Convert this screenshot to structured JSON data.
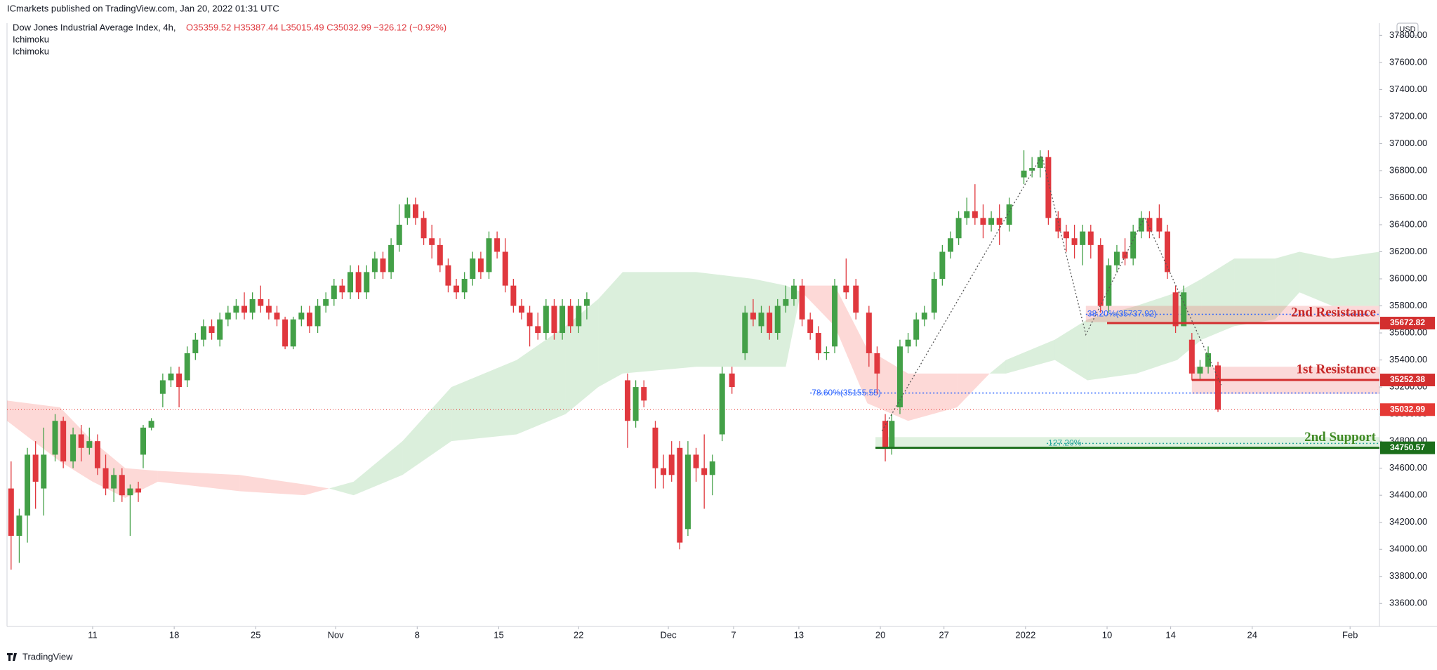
{
  "chart_data": {
    "type": "candlestick",
    "publisher": "ICmarkets published on TradingView.com, Jan 20, 2022 01:31 UTC",
    "title": "Dow Jones Industrial Average Index, 4h,",
    "ohlc": "O35359.52 H35387.44 L35015.49 C35032.99",
    "change": "−326.12 (−0.92%)",
    "indicators": [
      "Ichimoku",
      "Ichimoku"
    ],
    "currency": "USD",
    "brand": "TradingView",
    "up_color": "#43a047",
    "down_color": "#e0383e",
    "xlim": [
      -0.25,
      83.9
    ],
    "xticks": [
      {
        "value": 5,
        "label": "11"
      },
      {
        "value": 10,
        "label": "18"
      },
      {
        "value": 15,
        "label": "25"
      },
      {
        "value": 19.9,
        "label": "Nov"
      },
      {
        "value": 24.9,
        "label": "8"
      },
      {
        "value": 29.9,
        "label": "15"
      },
      {
        "value": 34.8,
        "label": "22"
      },
      {
        "value": 40.3,
        "label": "Dec"
      },
      {
        "value": 44.3,
        "label": "7"
      },
      {
        "value": 48.3,
        "label": "13"
      },
      {
        "value": 53.3,
        "label": "20"
      },
      {
        "value": 57.2,
        "label": "27"
      },
      {
        "value": 62.2,
        "label": "2022"
      },
      {
        "value": 67.2,
        "label": "10"
      },
      {
        "value": 71.1,
        "label": "14"
      },
      {
        "value": 76.1,
        "label": "24"
      },
      {
        "value": 82.1,
        "label": "Feb"
      }
    ],
    "ylim": [
      33430,
      37890
    ],
    "yticks": [
      {
        "value": 33600,
        "label": "33600.00"
      },
      {
        "value": 33800,
        "label": "33800.00"
      },
      {
        "value": 34000,
        "label": "34000.00"
      },
      {
        "value": 34200,
        "label": "34200.00"
      },
      {
        "value": 34400,
        "label": "34400.00"
      },
      {
        "value": 34600,
        "label": "34600.00"
      },
      {
        "value": 34800,
        "label": "34800.00"
      },
      {
        "value": 35000,
        "label": "35000.00"
      },
      {
        "value": 35200,
        "label": "35200.00"
      },
      {
        "value": 35400,
        "label": "35400.00"
      },
      {
        "value": 35600,
        "label": "35600.00"
      },
      {
        "value": 35800,
        "label": "35800.00"
      },
      {
        "value": 36000,
        "label": "36000.00"
      },
      {
        "value": 36200,
        "label": "36200.00"
      },
      {
        "value": 36400,
        "label": "36400.00"
      },
      {
        "value": 36600,
        "label": "36600.00"
      },
      {
        "value": 36800,
        "label": "36800.00"
      },
      {
        "value": 37000,
        "label": "37000.00"
      },
      {
        "value": 37200,
        "label": "37200.00"
      },
      {
        "value": 37400,
        "label": "37400.00"
      },
      {
        "value": 37600,
        "label": "37600.00"
      },
      {
        "value": 37800,
        "label": "37800.00"
      }
    ],
    "x": [
      0,
      0.5,
      1,
      1.5,
      2,
      2.7,
      3.2,
      3.8,
      4.3,
      4.8,
      5.3,
      5.8,
      6.3,
      6.8,
      7.3,
      7.8,
      8.1,
      8.6,
      9.3,
      9.8,
      10.3,
      10.8,
      11.3,
      11.8,
      12.3,
      12.8,
      13.3,
      13.8,
      14.3,
      14.8,
      15.3,
      15.8,
      16.3,
      16.8,
      17.3,
      17.8,
      18.3,
      18.8,
      19.3,
      19.8,
      20.3,
      20.8,
      21.3,
      21.8,
      22.3,
      22.8,
      23.3,
      23.8,
      24.3,
      24.8,
      25.3,
      25.8,
      26.3,
      26.8,
      27.3,
      27.8,
      28.3,
      28.8,
      29.3,
      29.8,
      30.3,
      30.8,
      31.3,
      31.8,
      32.3,
      32.8,
      33.3,
      33.8,
      34.3,
      34.8,
      35.3,
      37.8,
      38.3,
      38.8,
      39.5,
      40,
      40.5,
      41,
      41.5,
      42,
      42.5,
      43,
      43.6,
      44.2,
      45,
      45.5,
      46,
      46.5,
      47,
      47.5,
      48,
      48.5,
      49,
      49.5,
      50,
      50.5,
      51.2,
      51.8,
      52.6,
      53.1,
      53.6,
      54,
      54.5,
      55,
      55.5,
      56,
      56.6,
      57.1,
      57.6,
      58.1,
      58.6,
      59.1,
      59.6,
      60.1,
      60.6,
      61.2,
      62.1,
      62.6,
      63.1,
      63.6,
      64.2,
      64.7,
      65.2,
      65.7,
      66.2,
      66.8,
      67.3,
      67.8,
      68.3,
      68.8,
      69.3,
      69.8,
      70.4,
      70.9,
      71.4,
      71.9,
      72.4,
      72.9,
      73.4,
      74
    ],
    "open": [
      34450,
      34100,
      34250,
      34700,
      34450,
      34700,
      34950,
      34650,
      34850,
      34750,
      34800,
      34600,
      34450,
      34550,
      34400,
      34450,
      34700,
      34900,
      35150,
      35250,
      35300,
      35250,
      35450,
      35550,
      35650,
      35550,
      35700,
      35750,
      35800,
      35750,
      35850,
      35800,
      35750,
      35700,
      35500,
      35700,
      35750,
      35650,
      35800,
      35850,
      35950,
      35900,
      36050,
      35900,
      36050,
      36150,
      36050,
      36250,
      36450,
      36550,
      36450,
      36300,
      36250,
      36100,
      35950,
      35900,
      36000,
      36150,
      36050,
      36300,
      36200,
      35950,
      35800,
      35750,
      35650,
      35600,
      35800,
      35600,
      35800,
      35650,
      35800,
      35250,
      34950,
      35200,
      34900,
      34600,
      34700,
      34750,
      34150,
      34700,
      34600,
      34550,
      34850,
      35300,
      35450,
      35750,
      35650,
      35750,
      35600,
      35800,
      35850,
      35950,
      35700,
      35600,
      35450,
      35500,
      35950,
      35950,
      35750,
      35450,
      34950,
      34750,
      35050,
      35500,
      35550,
      35700,
      35750,
      36000,
      36200,
      36300,
      36450,
      36500,
      36450,
      36400,
      36450,
      36400,
      36750,
      36800,
      36820,
      36900,
      36450,
      36350,
      36300,
      36250,
      36350,
      36250,
      35800,
      36100,
      36200,
      36150,
      36350,
      36450,
      36450,
      36350,
      35900,
      35650,
      35550,
      35300,
      35350,
      35359.52
    ],
    "high": [
      34650,
      34300,
      34750,
      34800,
      34900,
      35000,
      34980,
      34900,
      34920,
      34900,
      34850,
      34700,
      34600,
      34600,
      34480,
      34500,
      34920,
      34970,
      35300,
      35350,
      35350,
      35500,
      35600,
      35700,
      35700,
      35750,
      35800,
      35850,
      35900,
      35900,
      35950,
      35850,
      35800,
      35720,
      35720,
      35800,
      35800,
      35850,
      35900,
      36000,
      36000,
      36100,
      36100,
      36100,
      36200,
      36200,
      36300,
      36550,
      36600,
      36600,
      36500,
      36400,
      36300,
      36150,
      36000,
      36050,
      36200,
      36200,
      36350,
      36350,
      36300,
      36000,
      35850,
      35800,
      35750,
      35850,
      35850,
      35850,
      35850,
      35850,
      35900,
      35300,
      35250,
      35250,
      34950,
      34700,
      34800,
      34800,
      34800,
      34750,
      34850,
      34700,
      35350,
      35350,
      35800,
      35850,
      35800,
      35800,
      35850,
      35950,
      36000,
      36000,
      35750,
      35650,
      35500,
      36000,
      36150,
      36000,
      35800,
      35500,
      35000,
      35000,
      35550,
      35600,
      35750,
      35800,
      36050,
      36250,
      36350,
      36500,
      36600,
      36700,
      36550,
      36500,
      36550,
      36600,
      36950,
      36900,
      36950,
      36950,
      36500,
      36400,
      36400,
      36400,
      36400,
      36300,
      36150,
      36250,
      36300,
      36400,
      36500,
      36500,
      36550,
      36400,
      35950,
      35950,
      35600,
      35400,
      35500,
      35387.44
    ],
    "low": [
      33850,
      33900,
      34050,
      34300,
      34250,
      34650,
      34600,
      34600,
      34650,
      34700,
      34550,
      34400,
      34350,
      34350,
      34100,
      34350,
      34600,
      34880,
      35050,
      35200,
      35050,
      35200,
      35400,
      35500,
      35550,
      35500,
      35650,
      35700,
      35700,
      35700,
      35750,
      35700,
      35650,
      35480,
      35480,
      35650,
      35600,
      35600,
      35750,
      35800,
      35850,
      35850,
      35850,
      35850,
      36000,
      36000,
      36000,
      36200,
      36400,
      36400,
      36250,
      36150,
      36050,
      35900,
      35850,
      35850,
      35950,
      36000,
      36000,
      36150,
      35900,
      35750,
      35700,
      35500,
      35550,
      35550,
      35550,
      35550,
      35600,
      35600,
      35700,
      34750,
      34900,
      35050,
      34450,
      34450,
      34500,
      34000,
      34100,
      34500,
      34300,
      34400,
      34800,
      35150,
      35400,
      35650,
      35600,
      35550,
      35550,
      35750,
      35800,
      35650,
      35550,
      35400,
      35400,
      35450,
      35850,
      35700,
      35350,
      35150,
      34650,
      34700,
      35000,
      35450,
      35500,
      35650,
      35700,
      35950,
      36150,
      36250,
      36400,
      36400,
      36300,
      36350,
      36250,
      36350,
      36700,
      36750,
      36750,
      36400,
      36300,
      36200,
      36150,
      36100,
      36150,
      35750,
      35750,
      36050,
      36100,
      36100,
      36300,
      36300,
      36300,
      36000,
      35600,
      35650,
      35250,
      35250,
      35300,
      35015.49
    ],
    "close": [
      34100,
      34250,
      34700,
      34500,
      34700,
      34950,
      34650,
      34850,
      34750,
      34800,
      34600,
      34450,
      34550,
      34400,
      34450,
      34420,
      34900,
      34950,
      35250,
      35300,
      35200,
      35450,
      35550,
      35650,
      35600,
      35700,
      35750,
      35800,
      35750,
      35850,
      35800,
      35750,
      35700,
      35500,
      35700,
      35750,
      35650,
      35800,
      35850,
      35950,
      35900,
      36050,
      35900,
      36050,
      36150,
      36050,
      36250,
      36400,
      36550,
      36450,
      36300,
      36250,
      36100,
      35950,
      35900,
      36000,
      36150,
      36050,
      36300,
      36200,
      35950,
      35800,
      35750,
      35650,
      35600,
      35800,
      35600,
      35800,
      35650,
      35800,
      35850,
      34950,
      35200,
      35100,
      34600,
      34550,
      34550,
      34050,
      34700,
      34600,
      34550,
      34650,
      35300,
      35200,
      35750,
      35700,
      35750,
      35600,
      35800,
      35850,
      35950,
      35700,
      35600,
      35450,
      35460,
      35950,
      35900,
      35750,
      35450,
      35300,
      34750,
      34950,
      35500,
      35550,
      35700,
      35750,
      36000,
      36200,
      36300,
      36450,
      36500,
      36450,
      36400,
      36450,
      36400,
      36550,
      36800,
      36820,
      36900,
      36450,
      36350,
      36300,
      36250,
      36350,
      36250,
      35800,
      36100,
      36200,
      36150,
      36350,
      36450,
      36350,
      36350,
      36050,
      35650,
      35900,
      35300,
      35350,
      35450,
      35032.99
    ],
    "cloud": {
      "up_color": "rgba(76,175,80,0.2)",
      "down_color": "rgba(244,67,54,0.2)",
      "x": [
        -0.25,
        3,
        5,
        7,
        9,
        14,
        18,
        19.5,
        21,
        24,
        27,
        31,
        34,
        36,
        37.5,
        42,
        45.5,
        47.5,
        48.5,
        50.5,
        52.5,
        55,
        58,
        60,
        61,
        64,
        66,
        69,
        71.5,
        73,
        75,
        77.5,
        79,
        81,
        83.9
      ],
      "span_a": [
        34950,
        34650,
        34500,
        34380,
        34500,
        34430,
        34400,
        34450,
        34500,
        34800,
        35200,
        35400,
        35650,
        35850,
        36050,
        36050,
        36000,
        35950,
        35900,
        35650,
        35080,
        34950,
        35050,
        35300,
        35400,
        35550,
        35700,
        35800,
        35900,
        36000,
        36150,
        36150,
        36200,
        36150,
        36200
      ],
      "span_b": [
        35100,
        35050,
        34800,
        34600,
        34580,
        34550,
        34480,
        34450,
        34400,
        34550,
        34800,
        34850,
        35000,
        35200,
        35300,
        35350,
        35350,
        35350,
        35950,
        35950,
        35480,
        35300,
        35300,
        35300,
        35300,
        35400,
        35250,
        35300,
        35400,
        35550,
        35650,
        35700,
        35900,
        35800,
        35800
      ]
    },
    "zones": [
      {
        "x_start": 72.4,
        "low": 35150,
        "high": 35350,
        "color": "rgba(239,83,80,0.22)"
      },
      {
        "x_start": 65.9,
        "low": 35680,
        "high": 35800,
        "color": "rgba(239,83,80,0.22)"
      },
      {
        "x_start": 53,
        "low": 34750,
        "high": 34830,
        "color": "rgba(76,175,80,0.18)"
      }
    ],
    "wave": {
      "x": [
        53.4,
        63.2,
        65.9,
        69.5,
        74.2
      ],
      "values": [
        34876,
        36912,
        35588,
        36457,
        35215
      ],
      "color": "#555555"
    },
    "fibs": [
      {
        "label": "78.60%(35155.55)",
        "value": 35155.55,
        "x_start": 49,
        "color": "#2962ff"
      },
      {
        "label": "38.20%(35737.92)",
        "value": 35737.92,
        "x_start": 65.9,
        "color": "#2962ff"
      },
      {
        "label": "127.20%",
        "value": 34783,
        "x_start": 63.5,
        "color": "#26a69a"
      }
    ],
    "levels": [
      {
        "name": "2nd Resistance",
        "value": 35672.82,
        "x_start": 67.2,
        "color": "#d32f2f"
      },
      {
        "name": "1st Resistance",
        "value": 35252.38,
        "x_start": 72.4,
        "color": "#d32f2f"
      },
      {
        "name": "2nd Support",
        "value": 34750.57,
        "x_start": 53,
        "color": "#1b6e1b"
      }
    ],
    "last_price": {
      "value": 35032.99,
      "color": "#e53935"
    }
  }
}
